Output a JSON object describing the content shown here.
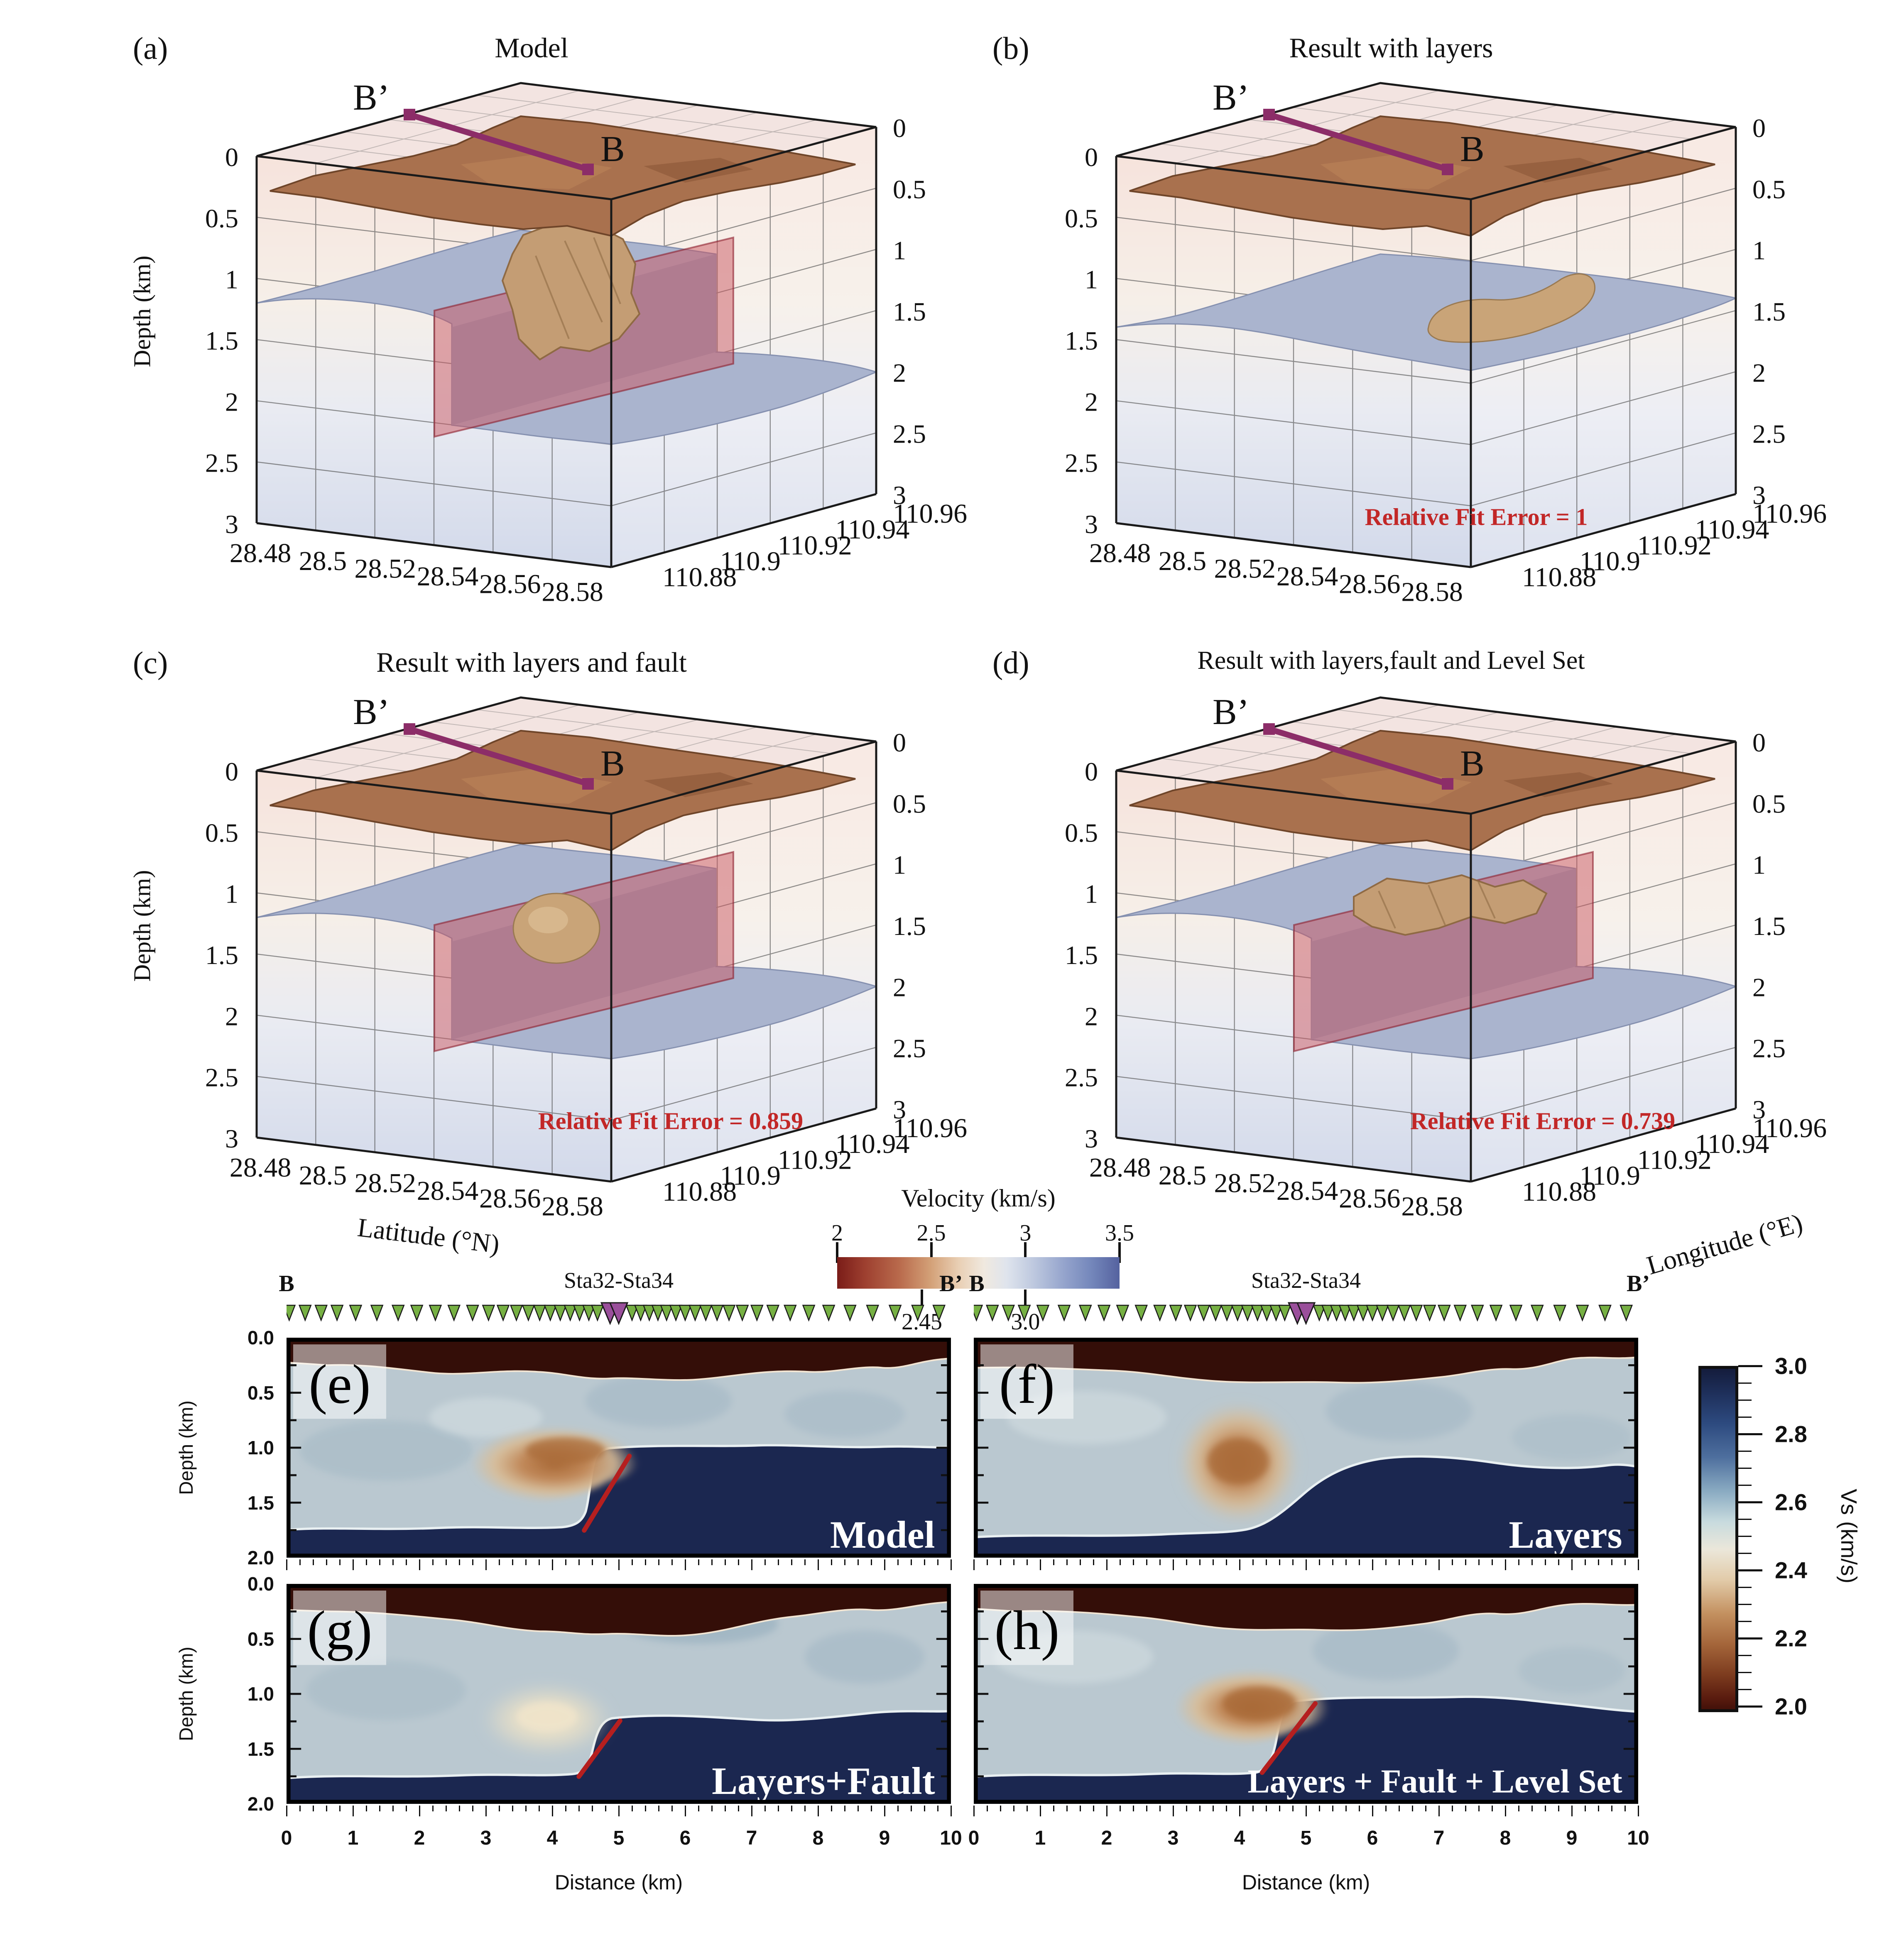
{
  "colors": {
    "fit_error": "#c22727",
    "fault_line": "#b51f1f",
    "profile_line": "#8c2d68",
    "station_green": "#76b043",
    "station_purple": "#9a4f9b",
    "terrain_brown": "#a9714e",
    "layer_blue": "#aab4ce",
    "anomaly_tan": "#c49d74",
    "basement_navy": "#1b2750",
    "surface_maroon": "#340e08"
  },
  "panels3d": [
    {
      "letter": "(a)",
      "title": "Model",
      "fit_error": ""
    },
    {
      "letter": "(b)",
      "title": "Result with layers",
      "fit_error": "Relative Fit Error  = 1"
    },
    {
      "letter": "(c)",
      "title": "Result with layers and fault",
      "fit_error": "Relative Fit Error  = 0.859"
    },
    {
      "letter": "(d)",
      "title": "Result with layers,fault and Level Set",
      "fit_error": "Relative Fit Error  = 0.739"
    }
  ],
  "axes3d": {
    "depth_label": "Depth (km)",
    "depth_ticks": [
      "0",
      "0.5",
      "1",
      "1.5",
      "2",
      "2.5",
      "3"
    ],
    "lat_label": "Latitude (°N)",
    "lat_ticks": [
      "28.48",
      "28.5",
      "28.52",
      "28.54",
      "28.56",
      "28.58"
    ],
    "lon_label": "Longitude (°E)",
    "lon_ticks": [
      "110.88",
      "110.9",
      "110.92",
      "110.94",
      "110.96"
    ],
    "profile": {
      "start": "B’",
      "end": "B"
    }
  },
  "colorbar_velocity": {
    "title": "Velocity (km/s)",
    "ticks_top": [
      "2",
      "2.5",
      "3",
      "3.5"
    ],
    "ticks_bottom": [
      "2.45",
      "3.0"
    ]
  },
  "sections": {
    "annotations": {
      "left": "B",
      "center": "Sta32-Sta34",
      "right": "B’"
    },
    "panels": [
      {
        "letter": "(e)",
        "label": "Model"
      },
      {
        "letter": "(f)",
        "label": "Layers"
      },
      {
        "letter": "(g)",
        "label": "Layers+Fault"
      },
      {
        "letter": "(h)",
        "label": "Layers + Fault + Level Set"
      }
    ],
    "depth_label": "Depth (km)",
    "depth_ticks": [
      "0.0",
      "0.5",
      "1.0",
      "1.5",
      "2.0"
    ],
    "x_ticks": [
      "0",
      "1",
      "2",
      "3",
      "4",
      "5",
      "6",
      "7",
      "8",
      "9",
      "10"
    ],
    "x_label": "Distance (km)",
    "stations": {
      "green_positions": [
        0.004,
        0.028,
        0.052,
        0.076,
        0.104,
        0.136,
        0.168,
        0.196,
        0.224,
        0.252,
        0.28,
        0.304,
        0.326,
        0.346,
        0.364,
        0.381,
        0.397,
        0.412,
        0.427,
        0.441,
        0.455,
        0.468,
        0.52,
        0.533,
        0.546,
        0.559,
        0.572,
        0.586,
        0.6,
        0.615,
        0.631,
        0.648,
        0.666,
        0.686,
        0.708,
        0.732,
        0.758,
        0.786,
        0.816,
        0.848,
        0.882,
        0.916,
        0.95,
        0.982
      ],
      "purple_positions": [
        0.487,
        0.5
      ]
    }
  },
  "colorbar_vs": {
    "label": "Vs (km/s)",
    "ticks": [
      "3.0",
      "2.8",
      "2.6",
      "2.4",
      "2.2",
      "2.0"
    ]
  },
  "chart_data": [
    {
      "type": "surface3d",
      "panel": "(a)",
      "title": "Model",
      "x_axis": {
        "label": "Latitude (°N)",
        "ticks": [
          28.48,
          28.5,
          28.52,
          28.54,
          28.56,
          28.58
        ]
      },
      "y_axis": {
        "label": "Longitude (°E)",
        "ticks": [
          110.88,
          110.9,
          110.92,
          110.94,
          110.96
        ]
      },
      "z_axis": {
        "label": "Depth (km)",
        "range": [
          0,
          3
        ],
        "ticks": [
          0,
          0.5,
          1,
          1.5,
          2,
          2.5,
          3
        ]
      },
      "profile_line": [
        "B’",
        "B"
      ],
      "relative_fit_error": null,
      "features": [
        "blocky brown topography velocity surface near 0.2 km depth",
        "blue-gray layer interface stepping from ~1.2 km down to ~2.0 km at a central fault",
        "red translucent fault plane",
        "blocky tan low-velocity anomaly body at the fault step"
      ]
    },
    {
      "type": "surface3d",
      "panel": "(b)",
      "title": "Result with layers",
      "x_axis": {
        "label": "Latitude (°N)",
        "ticks": [
          28.48,
          28.5,
          28.52,
          28.54,
          28.56,
          28.58
        ]
      },
      "y_axis": {
        "label": "Longitude (°E)",
        "ticks": [
          110.88,
          110.9,
          110.92,
          110.94,
          110.96
        ]
      },
      "z_axis": {
        "label": "Depth (km)",
        "range": [
          0,
          3
        ],
        "ticks": [
          0,
          0.5,
          1,
          1.5,
          2,
          2.5,
          3
        ]
      },
      "profile_line": [
        "B’",
        "B"
      ],
      "relative_fit_error": 1,
      "features": [
        "smooth brown topography surface",
        "smooth blue-gray layer interface (no fault step)",
        "smooth elongated tan anomaly body near 1.5 km depth"
      ]
    },
    {
      "type": "surface3d",
      "panel": "(c)",
      "title": "Result with layers and fault",
      "x_axis": {
        "label": "Latitude (°N)",
        "ticks": [
          28.48,
          28.5,
          28.52,
          28.54,
          28.56,
          28.58
        ]
      },
      "y_axis": {
        "label": "Longitude (°E)",
        "ticks": [
          110.88,
          110.9,
          110.92,
          110.94,
          110.96
        ]
      },
      "z_axis": {
        "label": "Depth (km)",
        "range": [
          0,
          3
        ],
        "ticks": [
          0,
          0.5,
          1,
          1.5,
          2,
          2.5,
          3
        ]
      },
      "profile_line": [
        "B’",
        "B"
      ],
      "relative_fit_error": 0.859,
      "features": [
        "smooth brown topography surface",
        "layer interface with fault step",
        "red translucent fault plane",
        "small spherical tan anomaly body"
      ]
    },
    {
      "type": "surface3d",
      "panel": "(d)",
      "title": "Result with layers,fault and Level Set",
      "x_axis": {
        "label": "Latitude (°N)",
        "ticks": [
          28.48,
          28.5,
          28.52,
          28.54,
          28.56,
          28.58
        ]
      },
      "y_axis": {
        "label": "Longitude (°E)",
        "ticks": [
          110.88,
          110.9,
          110.92,
          110.94,
          110.96
        ]
      },
      "z_axis": {
        "label": "Depth (km)",
        "range": [
          0,
          3
        ],
        "ticks": [
          0,
          0.5,
          1,
          1.5,
          2,
          2.5,
          3
        ]
      },
      "profile_line": [
        "B’",
        "B"
      ],
      "relative_fit_error": 0.739,
      "features": [
        "smooth brown topography surface",
        "layer interface with fault step",
        "red translucent fault plane",
        "elongated blocky tan anomaly body recovered by level set"
      ]
    },
    {
      "type": "heatmap",
      "panel": "(e)",
      "label": "Model",
      "x_axis": {
        "label": "Distance (km)",
        "range": [
          0,
          10
        ]
      },
      "y_axis": {
        "label": "Depth (km)",
        "range": [
          0,
          2
        ]
      },
      "color_axis": {
        "label": "Vs (km/s)",
        "range": [
          2.0,
          3.0
        ]
      },
      "annotations": [
        "B",
        "Sta32-Sta34",
        "B’"
      ],
      "features": [
        "very low Vs (~2.0) surface layer, thickest at 3-6 km",
        "tan low-Vs anomaly (~2.35) at 3-5.2 km distance, 0.9-1.6 km depth",
        "high-Vs (~3.0) basement right of fault below ~1.05 km and below ~1.8 km everywhere",
        "red fault line from (5.2, 1.05) to (4.4, 1.75)"
      ]
    },
    {
      "type": "heatmap",
      "panel": "(f)",
      "label": "Layers",
      "x_axis": {
        "label": "Distance (km)",
        "range": [
          0,
          10
        ]
      },
      "y_axis": {
        "label": "Depth (km)",
        "range": [
          0,
          2
        ]
      },
      "color_axis": {
        "label": "Vs (km/s)",
        "range": [
          2.0,
          3.0
        ]
      },
      "annotations": [
        "B",
        "Sta32-Sta34",
        "B’"
      ],
      "features": [
        "round smeared low-Vs anomaly centered near (3.9, 1.1)",
        "smoothly rising high-Vs basement from left to right",
        "no fault line"
      ]
    },
    {
      "type": "heatmap",
      "panel": "(g)",
      "label": "Layers+Fault",
      "x_axis": {
        "label": "Distance (km)",
        "range": [
          0,
          10
        ]
      },
      "y_axis": {
        "label": "Depth (km)",
        "range": [
          0,
          2
        ]
      },
      "color_axis": {
        "label": "Vs (km/s)",
        "range": [
          2.0,
          3.0
        ]
      },
      "annotations": [
        "B",
        "Sta32-Sta34",
        "B’"
      ],
      "features": [
        "faint pale anomaly near (3.9, 1.25)",
        "high-Vs basement stepped at fault",
        "red fault line from (5.0, 1.25) to (4.4, 1.75)"
      ]
    },
    {
      "type": "heatmap",
      "panel": "(h)",
      "label": "Layers + Fault + Level Set",
      "x_axis": {
        "label": "Distance (km)",
        "range": [
          0,
          10
        ]
      },
      "y_axis": {
        "label": "Depth (km)",
        "range": [
          0,
          2
        ]
      },
      "color_axis": {
        "label": "Vs (km/s)",
        "range": [
          2.0,
          3.0
        ]
      },
      "annotations": [
        "B",
        "Sta32-Sta34",
        "B’"
      ],
      "features": [
        "compact tan low-Vs anomaly at 3.2-5.2 km distance, 0.9-1.5 km depth",
        "high-Vs basement stepped at fault",
        "red fault line from (5.1, 1.1) to (4.3, 1.75)"
      ]
    },
    {
      "type": "colorbar",
      "title": "Velocity (km/s)",
      "orientation": "horizontal",
      "range": [
        2,
        3.5
      ],
      "ticks": [
        2,
        2.5,
        3,
        3.5
      ],
      "secondary_ticks": [
        2.45,
        3.0
      ]
    },
    {
      "type": "colorbar",
      "title": "Vs (km/s)",
      "orientation": "vertical",
      "range": [
        2.0,
        3.0
      ],
      "ticks": [
        3.0,
        2.8,
        2.6,
        2.4,
        2.2,
        2.0
      ]
    }
  ]
}
